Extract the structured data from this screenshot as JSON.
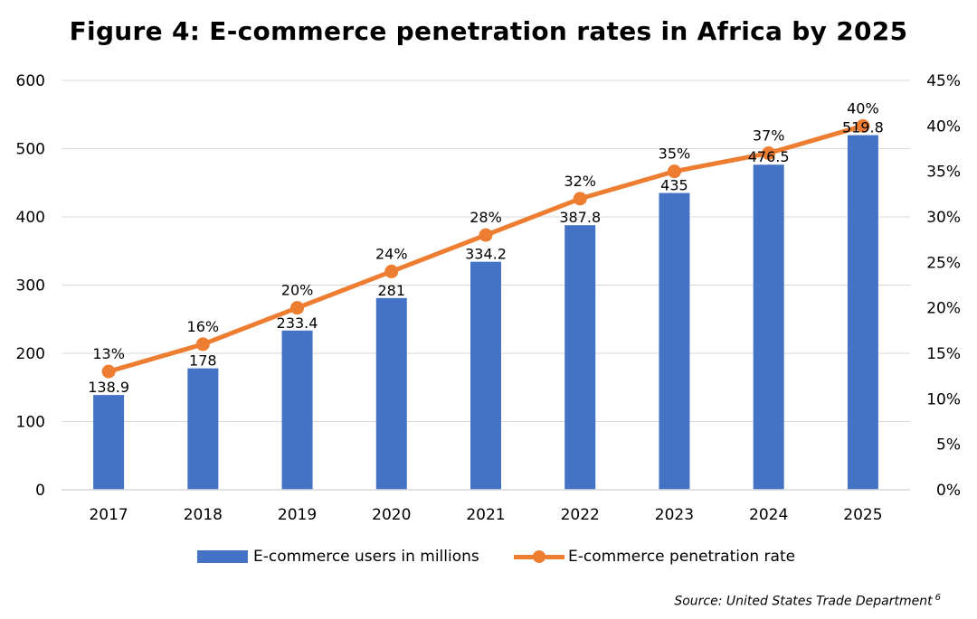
{
  "chart_data": {
    "type": "bar+line",
    "title": "Figure 4: E-commerce penetration rates in Africa by 2025",
    "categories": [
      "2017",
      "2018",
      "2019",
      "2020",
      "2021",
      "2022",
      "2023",
      "2024",
      "2025"
    ],
    "series": [
      {
        "name": "E-commerce users in millions",
        "type": "bar",
        "axis": "left",
        "values": [
          138.9,
          178,
          233.4,
          281,
          334.2,
          387.8,
          435,
          476.5,
          519.8
        ],
        "labels": [
          "138.9",
          "178",
          "233.4",
          "281",
          "334.2",
          "387.8",
          "435",
          "476.5",
          "519.8"
        ]
      },
      {
        "name": "E-commerce penetration rate",
        "type": "line",
        "axis": "right",
        "values": [
          13,
          16,
          20,
          24,
          28,
          32,
          35,
          37,
          40
        ],
        "labels": [
          "13%",
          "16%",
          "20%",
          "24%",
          "28%",
          "32%",
          "35%",
          "37%",
          "40%"
        ]
      }
    ],
    "y_left": {
      "min": 0,
      "max": 600,
      "ticks": [
        0,
        100,
        200,
        300,
        400,
        500,
        600
      ],
      "tick_labels": [
        "0",
        "100",
        "200",
        "300",
        "400",
        "500",
        "600"
      ]
    },
    "y_right": {
      "min": 0,
      "max": 45,
      "ticks": [
        0,
        5,
        10,
        15,
        20,
        25,
        30,
        35,
        40,
        45
      ],
      "tick_labels": [
        "0%",
        "5%",
        "10%",
        "15%",
        "20%",
        "25%",
        "30%",
        "35%",
        "40%",
        "45%"
      ]
    },
    "grid": true,
    "legend_position": "bottom",
    "colors": {
      "bar": "#4472C4",
      "line": "#ED7D31",
      "grid": "#D9D9D9"
    }
  },
  "source": {
    "text": "Source: United States Trade Department",
    "note": "6"
  }
}
